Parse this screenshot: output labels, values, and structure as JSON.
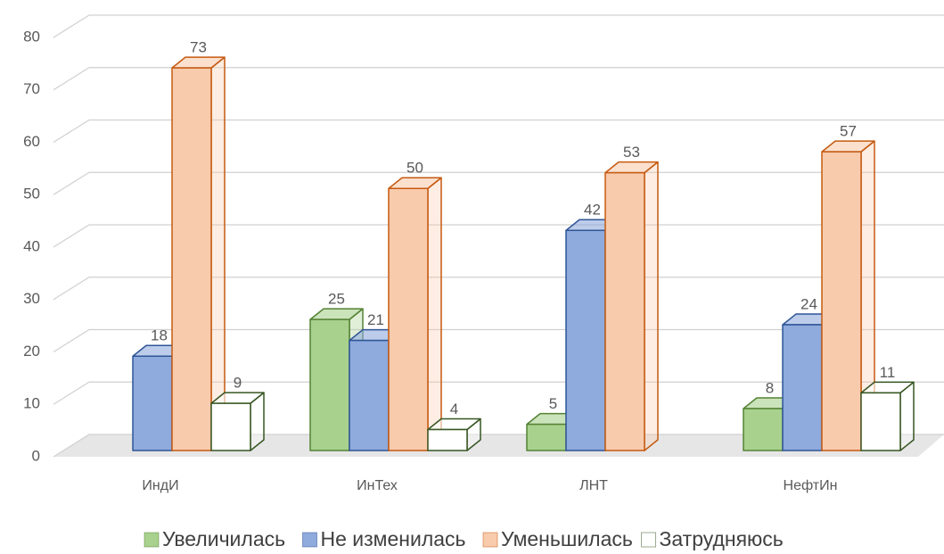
{
  "chart_data": {
    "type": "bar3d",
    "categories": [
      "ИндИ",
      "ИнТех",
      "ЛНТ",
      "НефтИн"
    ],
    "series": [
      {
        "name": "Увеличилась",
        "color": "#a9d18e",
        "edgecolor": "#548235",
        "values": [
          null,
          25,
          5,
          8
        ]
      },
      {
        "name": "Не изменилась",
        "color": "#8faadc",
        "edgecolor": "#2f5597",
        "values": [
          18,
          21,
          42,
          24
        ]
      },
      {
        "name": "Уменьшилась",
        "color": "#f8cbad",
        "edgecolor": "#c55a11",
        "values": [
          73,
          50,
          53,
          57
        ]
      },
      {
        "name": "Затрудняюсь",
        "color": "#ffffff",
        "edgecolor": "#375623",
        "values": [
          9,
          4,
          null,
          11
        ]
      }
    ],
    "ylim": [
      0,
      80
    ],
    "yticks": [
      0,
      10,
      20,
      30,
      40,
      50,
      60,
      70,
      80
    ],
    "grid": true,
    "legend": "bottom"
  }
}
